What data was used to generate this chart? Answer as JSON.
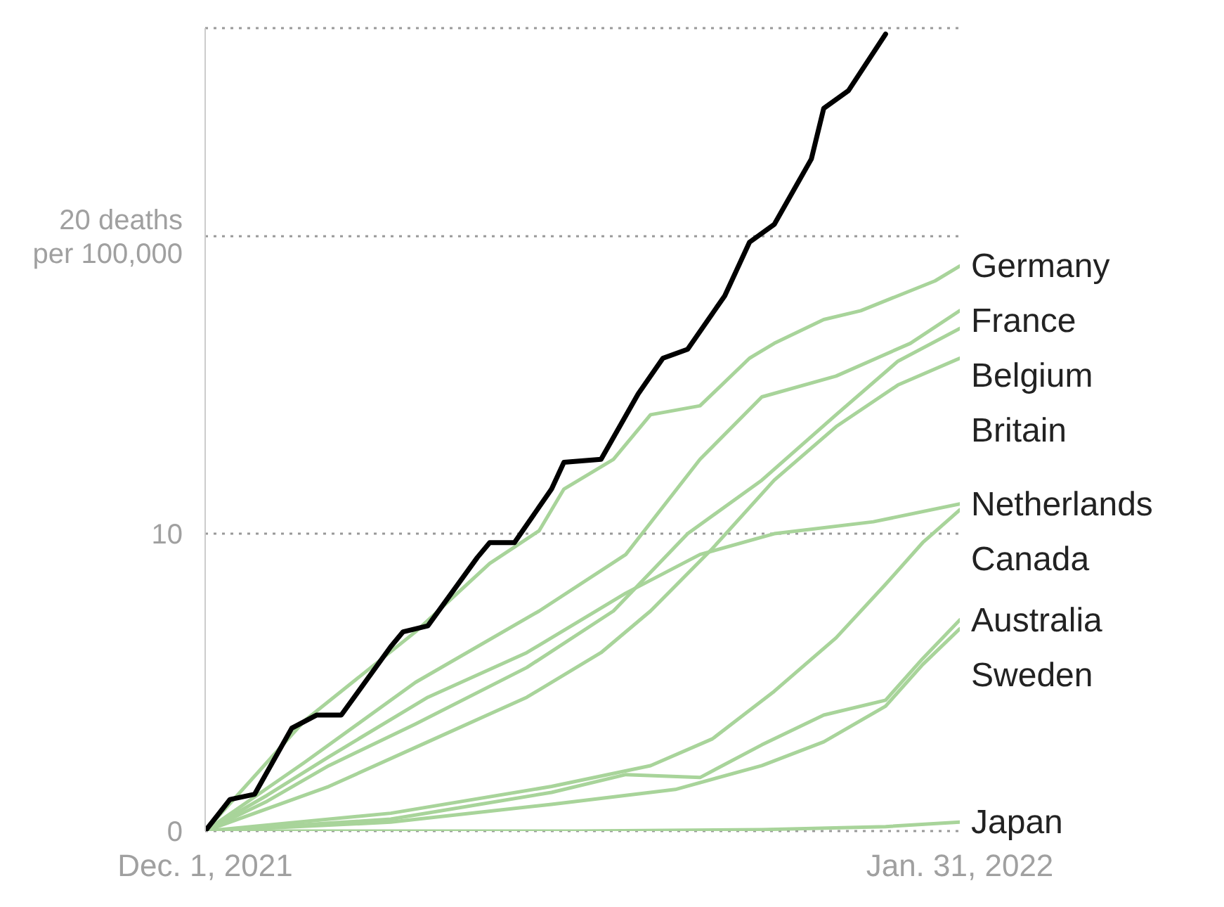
{
  "chart_data": {
    "type": "line",
    "xlim": [
      "2021-12-01",
      "2022-01-31"
    ],
    "xticks": [
      {
        "value": "2021-12-01",
        "label": "Dec. 1, 2021"
      },
      {
        "value": "2022-01-31",
        "label": "Jan. 31, 2022"
      }
    ],
    "ylim": [
      0,
      27
    ],
    "yticks": [
      0,
      10,
      {
        "value": 20,
        "label": "20 deaths per 100,000"
      }
    ],
    "grid": "y",
    "legend": false,
    "series": [
      {
        "color": "#000000",
        "x": [
          "2021-12-01",
          "2021-12-03",
          "2021-12-05",
          "2021-12-08",
          "2021-12-10",
          "2021-12-12",
          "2021-12-16",
          "2021-12-17",
          "2021-12-19",
          "2021-12-23",
          "2021-12-24",
          "2021-12-26",
          "2021-12-29",
          "2021-12-30",
          "2022-01-02",
          "2022-01-05",
          "2022-01-07",
          "2022-01-09",
          "2022-01-12",
          "2022-01-14",
          "2022-01-16",
          "2022-01-19",
          "2022-01-20",
          "2022-01-22",
          "2022-01-25"
        ],
        "values": [
          0,
          1.06,
          1.24,
          3.46,
          3.9,
          3.9,
          6.2,
          6.7,
          6.9,
          9.2,
          9.7,
          9.7,
          11.5,
          12.4,
          12.5,
          14.7,
          15.9,
          16.2,
          18.0,
          19.8,
          20.4,
          22.6,
          24.3,
          24.9,
          26.8
        ]
      },
      {
        "name": "Germany",
        "color": "#a8d49a",
        "x": [
          "2021-12-01",
          "2021-12-09",
          "2021-12-18",
          "2021-12-24",
          "2021-12-28",
          "2021-12-30",
          "2022-01-03",
          "2022-01-06",
          "2022-01-10",
          "2022-01-14",
          "2022-01-16",
          "2022-01-20",
          "2022-01-23",
          "2022-01-29",
          "2022-01-31"
        ],
        "values": [
          0,
          3.7,
          6.7,
          9.0,
          10.1,
          11.5,
          12.5,
          14.0,
          14.3,
          15.9,
          16.4,
          17.2,
          17.5,
          18.5,
          19.0
        ]
      },
      {
        "name": "France",
        "color": "#a8d49a",
        "x": [
          "2021-12-01",
          "2021-12-09",
          "2021-12-18",
          "2021-12-28",
          "2022-01-04",
          "2022-01-10",
          "2022-01-15",
          "2022-01-21",
          "2022-01-27",
          "2022-01-31"
        ],
        "values": [
          0,
          2.3,
          5.0,
          7.4,
          9.3,
          12.5,
          14.6,
          15.3,
          16.4,
          17.5
        ]
      },
      {
        "name": "Belgium",
        "color": "#a8d49a",
        "x": [
          "2021-12-01",
          "2021-12-06",
          "2021-12-11",
          "2021-12-18",
          "2021-12-27",
          "2022-01-03",
          "2022-01-09",
          "2022-01-15",
          "2022-01-21",
          "2022-01-26",
          "2022-01-31"
        ],
        "values": [
          0,
          1.0,
          2.2,
          3.6,
          5.5,
          7.4,
          10.0,
          11.8,
          14.0,
          15.8,
          16.9
        ]
      },
      {
        "name": "Britain",
        "color": "#a8d49a",
        "x": [
          "2021-12-01",
          "2021-12-11",
          "2021-12-19",
          "2021-12-27",
          "2022-01-02",
          "2022-01-06",
          "2022-01-11",
          "2022-01-16",
          "2022-01-21",
          "2022-01-26",
          "2022-01-31"
        ],
        "values": [
          0,
          1.5,
          3.0,
          4.5,
          6.0,
          7.4,
          9.5,
          11.8,
          13.6,
          15.0,
          15.9
        ]
      },
      {
        "name": "Netherlands",
        "color": "#a8d49a",
        "x": [
          "2021-12-01",
          "2021-12-06",
          "2021-12-11",
          "2021-12-19",
          "2021-12-27",
          "2022-01-04",
          "2022-01-10",
          "2022-01-16",
          "2022-01-24",
          "2022-01-31"
        ],
        "values": [
          0,
          1.2,
          2.5,
          4.5,
          6.0,
          8.0,
          9.3,
          10.0,
          10.4,
          11.0
        ]
      },
      {
        "name": "Canada",
        "color": "#a8d49a",
        "x": [
          "2021-12-01",
          "2021-12-16",
          "2021-12-29",
          "2022-01-06",
          "2022-01-11",
          "2022-01-16",
          "2022-01-21",
          "2022-01-25",
          "2022-01-28",
          "2022-01-31"
        ],
        "values": [
          0,
          0.6,
          1.5,
          2.2,
          3.1,
          4.7,
          6.5,
          8.3,
          9.7,
          10.8
        ]
      },
      {
        "name": "Australia",
        "color": "#a8d49a",
        "x": [
          "2021-12-01",
          "2021-12-16",
          "2021-12-29",
          "2022-01-04",
          "2022-01-10",
          "2022-01-15",
          "2022-01-20",
          "2022-01-25",
          "2022-01-28",
          "2022-01-31"
        ],
        "values": [
          0,
          0.4,
          1.3,
          1.9,
          1.8,
          2.9,
          3.9,
          4.4,
          5.8,
          7.1
        ]
      },
      {
        "name": "Sweden",
        "color": "#a8d49a",
        "x": [
          "2021-12-01",
          "2021-12-16",
          "2021-12-29",
          "2022-01-08",
          "2022-01-15",
          "2022-01-20",
          "2022-01-25",
          "2022-01-28",
          "2022-01-31"
        ],
        "values": [
          0,
          0.3,
          0.9,
          1.4,
          2.2,
          3.0,
          4.2,
          5.6,
          6.8
        ]
      },
      {
        "name": "Japan",
        "color": "#a8d49a",
        "x": [
          "2021-12-01",
          "2021-12-31",
          "2022-01-15",
          "2022-01-25",
          "2022-01-31"
        ],
        "values": [
          0,
          0,
          0.05,
          0.15,
          0.3
        ]
      }
    ]
  }
}
